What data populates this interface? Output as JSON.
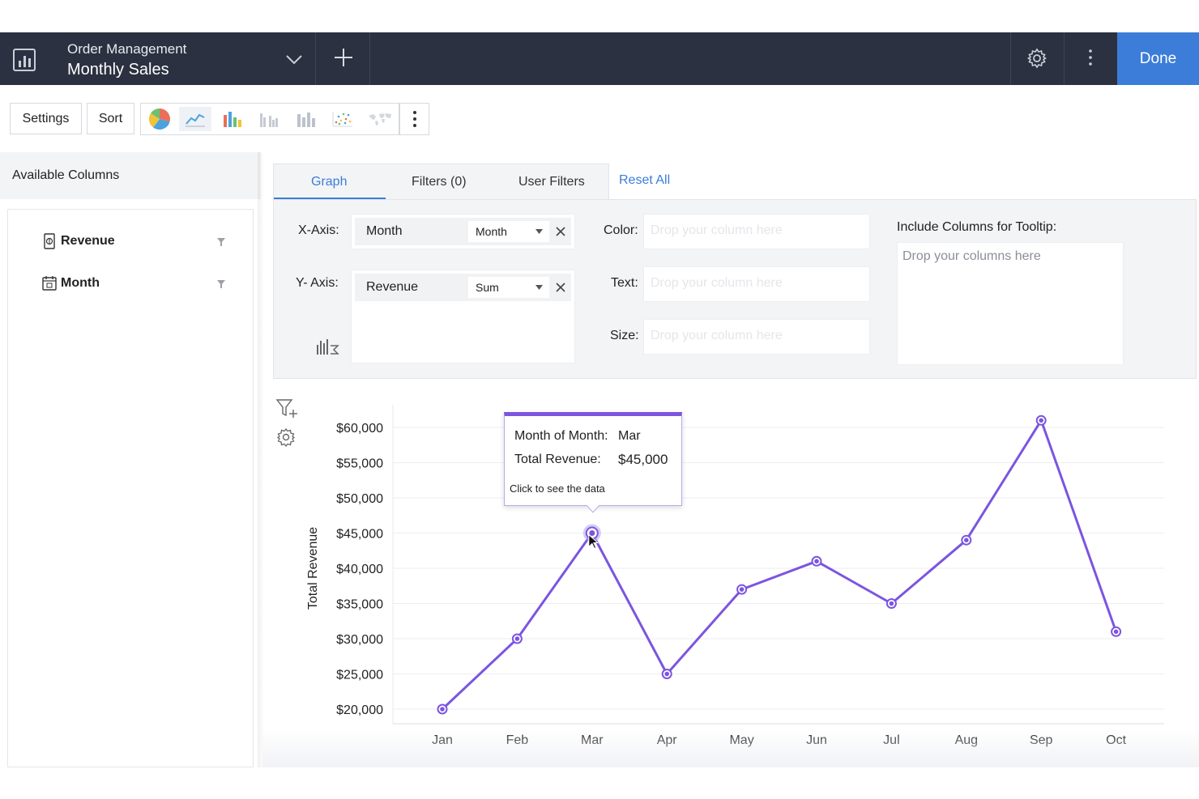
{
  "header": {
    "breadcrumb": "Order Management",
    "title": "Monthly Sales",
    "done_label": "Done"
  },
  "toolbar": {
    "settings_label": "Settings",
    "sort_label": "Sort",
    "chart_types": [
      "pie-chart-icon",
      "line-chart-icon",
      "bar-chart-icon",
      "grouped-bar-chart-icon",
      "stacked-bar-chart-icon",
      "scatter-chart-icon",
      "map-chart-icon"
    ],
    "selected_chart_type": "line-chart-icon"
  },
  "left_panel": {
    "heading": "Available Columns",
    "columns": [
      {
        "label": "Revenue",
        "icon": "currency-icon"
      },
      {
        "label": "Month",
        "icon": "calendar-icon"
      }
    ]
  },
  "tabs": {
    "graph": "Graph",
    "filters": "Filters (0)",
    "user_filters": "User Filters",
    "reset": "Reset All"
  },
  "config": {
    "x_axis_label": "X-Axis:",
    "x_field": "Month",
    "x_agg": "Month",
    "y_axis_label": "Y- Axis:",
    "y_field": "Revenue",
    "y_agg": "Sum",
    "color_label": "Color:",
    "text_label": "Text:",
    "size_label": "Size:",
    "drop_placeholder": "Drop your column here",
    "tooltip_label": "Include Columns for Tooltip:",
    "tooltip_placeholder": "Drop your columns here"
  },
  "tooltip": {
    "row1_label": "Month of Month:",
    "row1_value": "Mar",
    "row2_label": "Total Revenue:",
    "row2_value": "$45,000",
    "note": "Click to see the data"
  },
  "colors": {
    "accent": "#3b7dd8",
    "series": "#7b55e0",
    "topbar": "#2b3140"
  },
  "chart_data": {
    "type": "line",
    "categories": [
      "Jan",
      "Feb",
      "Mar",
      "Apr",
      "May",
      "Jun",
      "Jul",
      "Aug",
      "Sep",
      "Oct"
    ],
    "series": [
      {
        "values": [
          20000,
          30000,
          45000,
          25000,
          37000,
          41000,
          35000,
          44000,
          61000,
          31000
        ]
      }
    ],
    "ylabel": "Total Revenue",
    "xlabel": "",
    "yticks": [
      "$20,000",
      "$25,000",
      "$30,000",
      "$35,000",
      "$40,000",
      "$45,000",
      "$50,000",
      "$55,000",
      "$60,000"
    ],
    "ytick_values": [
      20000,
      25000,
      30000,
      35000,
      40000,
      45000,
      50000,
      55000,
      60000
    ],
    "ylim": [
      20000,
      60000
    ],
    "grid": true,
    "highlighted_category": "Mar"
  }
}
